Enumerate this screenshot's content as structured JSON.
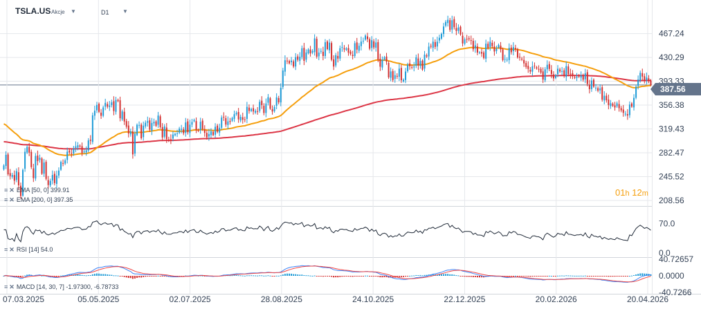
{
  "header": {
    "symbol": "TSLA.US",
    "type": "Akcje",
    "timeframe": "D1",
    "dropdown_icon": "caret-down-icon"
  },
  "indicators": {
    "ema50": {
      "label": "EMA [50, 0]",
      "value": "399.91"
    },
    "ema200": {
      "label": "EMA [200, 0]",
      "value": "397.35"
    },
    "rsi": {
      "label": "RSI [14]",
      "value": "54.0"
    },
    "macd": {
      "label": "MACD [14, 30, 7]",
      "value1": "-1.97300",
      "value2": "-6.78733"
    }
  },
  "last_price": "387.56",
  "timer": {
    "hours": "01",
    "minutes": "12",
    "h_unit": "h",
    "m_unit": "m"
  },
  "colors": {
    "up": "#1e9bd7",
    "down": "#d32f2f",
    "ema50": "#f59e0b",
    "ema200": "#dc3545",
    "grid": "#e5e7eb",
    "axis_text": "#334155",
    "price_line": "#64748b"
  },
  "chart_data": {
    "type": "candlestick",
    "x_tick_labels": [
      "07.03.2025",
      "05.05.2025",
      "02.07.2025",
      "28.08.2025",
      "24.10.2025",
      "22.12.2025",
      "20.02.2026",
      "20.04.2026"
    ],
    "price_axis": {
      "ticks": [
        "467.24",
        "430.29",
        "393.33",
        "356.38",
        "319.43",
        "282.47",
        "245.52",
        "208.56"
      ],
      "range": [
        200,
        500
      ]
    },
    "rsi_axis": {
      "ticks": [
        "70.0",
        "0.0"
      ],
      "range": [
        0,
        100
      ]
    },
    "macd_axis": {
      "ticks": [
        "40.72657",
        "0.0000",
        "-40.7266"
      ],
      "range": [
        -40.7266,
        40.72657
      ]
    },
    "series": [
      {
        "name": "TSLA.US",
        "close": [
          262.7,
          279.3,
          249.2,
          246.5,
          248.0,
          239.2,
          254.1,
          232.0,
          215.4,
          256.0,
          284.1,
          291.5,
          282.7,
          260.2,
          243.2,
          277.6,
          269.6,
          274.8,
          250.0,
          267.3,
          242.0,
          232.5,
          238.9,
          248.1,
          235.5,
          247.2,
          255.0,
          268.4,
          266.4,
          270.8,
          284.2,
          283.1,
          281.3,
          289.0,
          292.4,
          294.1,
          292.2,
          282.2,
          284.5,
          286.2,
          301.6,
          301.1,
          340.6,
          347.7,
          356.6,
          345.9,
          339.8,
          352.7,
          359.9,
          354.0,
          355.8,
          360.6,
          347.2,
          364.4,
          362.6,
          336.0,
          346.6,
          331.0,
          322.9,
          312.3,
          315.6,
          280.0,
          311.8,
          325.9,
          325.5,
          305.0,
          324.6,
          329.1,
          331.5,
          318.4,
          328.7,
          330.5,
          324.2,
          340.2,
          322.2,
          306.2,
          323.4,
          303.7,
          302.8,
          302.6,
          310.8,
          311.8,
          312.5,
          319.9,
          319.4,
          312.8,
          329.4,
          314.4,
          326.1,
          330.2,
          333.4,
          317.8,
          316.9,
          330.5,
          319.4,
          313.4,
          306.5,
          311.6,
          315.6,
          309.9,
          322.8,
          315.0,
          321.3,
          337.1,
          337.9,
          326.2,
          331.1,
          330.3,
          336.3,
          342.3,
          344.5,
          334.3,
          338.2,
          333.7,
          333.2,
          353.7,
          347.3,
          350.4,
          346.5,
          347.6,
          346.9,
          361.4,
          356.4,
          344.2,
          358.9,
          368.7,
          350.8,
          346.4,
          353.6,
          368.4,
          360.6,
          383.2,
          410.0,
          425.9,
          424.2,
          421.1,
          425.4,
          416.2,
          430.6,
          426.7,
          431.4,
          444.5,
          425.0,
          437.9,
          442.6,
          436.4,
          440.3,
          459.8,
          431.4,
          437.8,
          440.3,
          432.5,
          453.8,
          443.2,
          453.2,
          426.7,
          416.1,
          433.8,
          428.5,
          444.5,
          446.4,
          442.7,
          444.2,
          437.6,
          435.5,
          432.5,
          452.3,
          442.4,
          448.3,
          454.9,
          456.1,
          464.1,
          458.6,
          443.8,
          457.0,
          445.9,
          453.4,
          426.5,
          415.9,
          426.9,
          430.5,
          423.6,
          399.4,
          408.5,
          395.2,
          402.8,
          400.4,
          412.9,
          394.9,
          395.8,
          408.4,
          419.2,
          416.6,
          414.8,
          416.2,
          430.4,
          417.7,
          424.7,
          411.3,
          434.7,
          431.8,
          447.0,
          446.9,
          454.7,
          446.6,
          454.7,
          460.7,
          466.7,
          478.2,
          485.4,
          488.6,
          472.9,
          487.9,
          477.2,
          471.4,
          476.6,
          465.7,
          452.0,
          458.4,
          458.2,
          458.3,
          456.0,
          442.9,
          449.0,
          437.8,
          438.0,
          436.2,
          429.5,
          451.5,
          445.4,
          454.7,
          447.8,
          439.5,
          443.6,
          449.7,
          442.8,
          426.2,
          428.1,
          426.8,
          445.0,
          438.3,
          446.1,
          443.0,
          430.2,
          430.1,
          427.0,
          421.0,
          415.5,
          412.4,
          408.2,
          416.4,
          416.8,
          413.1,
          412.0,
          406.8,
          396.0,
          411.8,
          418.8,
          412.5,
          404.6,
          397.8,
          402.6,
          412.8,
          408.5,
          409.1,
          401.7,
          416.8,
          404.5,
          404.0,
          400.9,
          398.5,
          400.5,
          400.8,
          402.3,
          395.8,
          405.6,
          389.1,
          381.1,
          394.5,
          384.9,
          383.3,
          378.6,
          382.3,
          364.8,
          370.9,
          363.8,
          356.5,
          359.3,
          355.3,
          352.7,
          359.2,
          351.6,
          348.3,
          344.4,
          343.0,
          340.2,
          357.2,
          354.0,
          367.7,
          384.9,
          396.0,
          406.5,
          400.6,
          393.5,
          399.1,
          394.6,
          387.6
        ]
      },
      {
        "name": "EMA [50, 0]",
        "overlay": true
      },
      {
        "name": "EMA [200, 0]",
        "overlay": true
      },
      {
        "name": "RSI [14]",
        "pane": "rsi"
      },
      {
        "name": "MACD [14, 30, 7]",
        "pane": "macd"
      }
    ]
  }
}
